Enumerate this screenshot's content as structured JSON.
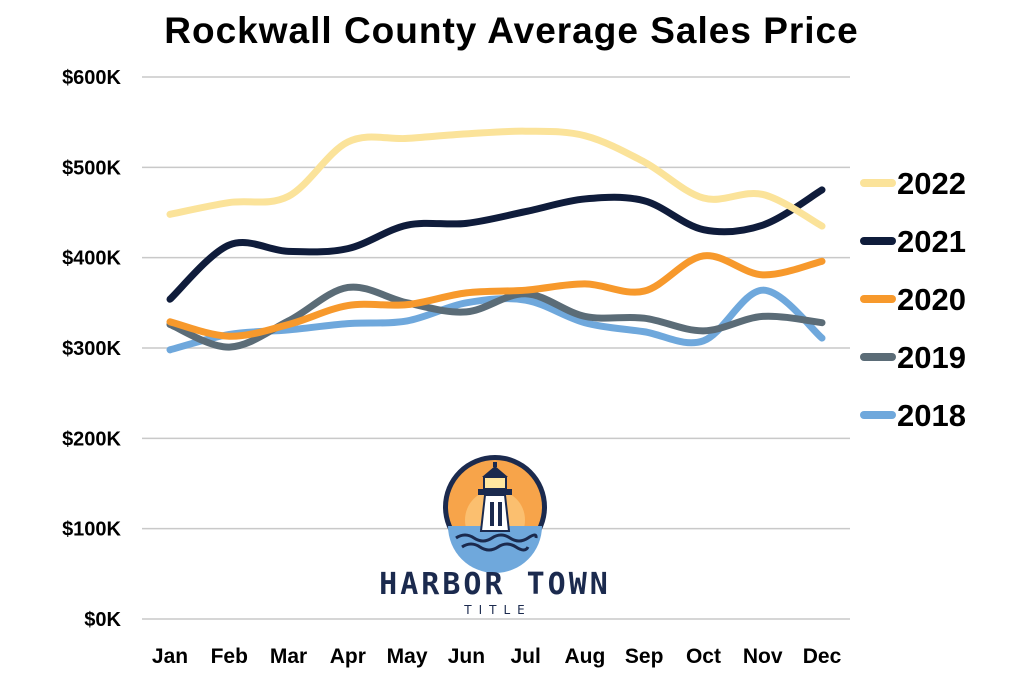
{
  "chart_data": {
    "type": "line",
    "title": "Rockwall County Average Sales Price",
    "xlabel": "",
    "ylabel": "",
    "categories": [
      "Jan",
      "Feb",
      "Mar",
      "Apr",
      "May",
      "Jun",
      "Jul",
      "Aug",
      "Sep",
      "Oct",
      "Nov",
      "Dec"
    ],
    "ylim": [
      0,
      600000
    ],
    "yticks": [
      0,
      100000,
      200000,
      300000,
      400000,
      500000,
      600000
    ],
    "ytick_labels": [
      "$0K",
      "$100K",
      "$200K",
      "$300K",
      "$400K",
      "$500K",
      "$600K"
    ],
    "grid": true,
    "legend_position": "right",
    "series": [
      {
        "name": "2022",
        "color": "#fbe39a",
        "values": [
          448000,
          461000,
          468000,
          528000,
          532000,
          537000,
          540000,
          535000,
          506000,
          466000,
          470000,
          435000
        ]
      },
      {
        "name": "2021",
        "color": "#0f1c3b",
        "values": [
          354000,
          414000,
          407000,
          410000,
          436000,
          438000,
          451000,
          465000,
          463000,
          431000,
          436000,
          475000
        ]
      },
      {
        "name": "2020",
        "color": "#f7992c",
        "values": [
          329000,
          313000,
          326000,
          347000,
          348000,
          361000,
          364000,
          371000,
          363000,
          402000,
          381000,
          396000
        ]
      },
      {
        "name": "2019",
        "color": "#5b6c77",
        "values": [
          326000,
          301000,
          330000,
          367000,
          350000,
          340000,
          360000,
          335000,
          333000,
          319000,
          335000,
          328000
        ]
      },
      {
        "name": "2018",
        "color": "#6fa8dc",
        "values": [
          298000,
          315000,
          320000,
          327000,
          330000,
          350000,
          353000,
          328000,
          318000,
          308000,
          364000,
          311000
        ]
      }
    ]
  },
  "logo": {
    "name": "HARBOR TOWN",
    "subtitle": "TITLE",
    "icon": "lighthouse-icon",
    "colors": {
      "sun": "#f7a44a",
      "navy": "#1b2a4e",
      "water": "#6fa8dc"
    }
  }
}
